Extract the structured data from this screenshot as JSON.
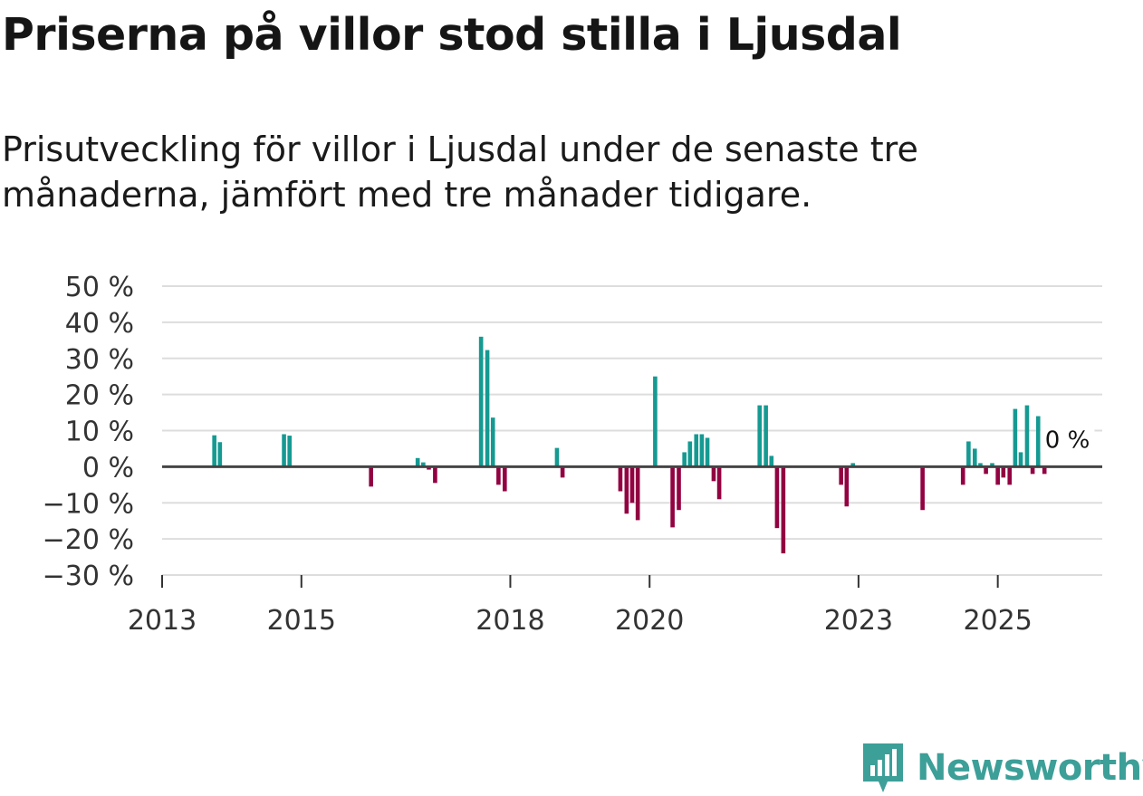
{
  "title": "Priserna på villor stod stilla i Ljusdal",
  "subtitle": "Prisutveckling för villor i Ljusdal under de senaste tre månaderna, jämfört med tre månader tidigare.",
  "brand": {
    "name": "Newsworthy",
    "color": "#3c9f98",
    "icon": "newsworthy-logo-icon"
  },
  "colors": {
    "positive": "#159a92",
    "negative": "#920241",
    "grid": "#dddddd",
    "zero_line": "#444444"
  },
  "chart_data": {
    "type": "bar",
    "title": "Priserna på villor stod stilla i Ljusdal",
    "xlabel": "",
    "ylabel": "",
    "ylim": [
      -30,
      50
    ],
    "xlim": [
      2013,
      2026.5
    ],
    "y_ticks": [
      50,
      40,
      30,
      20,
      10,
      0,
      -10,
      -20,
      -30
    ],
    "y_tick_labels": [
      "50 %",
      "40 %",
      "30 %",
      "20 %",
      "10 %",
      "0 %",
      "−10 %",
      "−20 %",
      "−30 %"
    ],
    "x_ticks": [
      2013,
      2015,
      2018,
      2020,
      2023,
      2025
    ],
    "x_tick_labels": [
      "2013",
      "2015",
      "2018",
      "2020",
      "2023",
      "2025"
    ],
    "annotation": {
      "text": "0 %",
      "x": 2026.0,
      "y": 0
    },
    "series": [
      {
        "name": "Prisutveckling",
        "points": [
          {
            "x": 2013.75,
            "y": 8.7
          },
          {
            "x": 2013.83,
            "y": 6.8
          },
          {
            "x": 2014.75,
            "y": 9.0
          },
          {
            "x": 2014.83,
            "y": 8.6
          },
          {
            "x": 2016.0,
            "y": -5.5
          },
          {
            "x": 2016.67,
            "y": 2.4
          },
          {
            "x": 2016.75,
            "y": 1.2
          },
          {
            "x": 2016.83,
            "y": -0.8
          },
          {
            "x": 2016.92,
            "y": -4.5
          },
          {
            "x": 2017.58,
            "y": 36.0
          },
          {
            "x": 2017.67,
            "y": 32.3
          },
          {
            "x": 2017.75,
            "y": 13.6
          },
          {
            "x": 2017.83,
            "y": -5.0
          },
          {
            "x": 2017.92,
            "y": -6.8
          },
          {
            "x": 2018.67,
            "y": 5.2
          },
          {
            "x": 2018.75,
            "y": -3.0
          },
          {
            "x": 2019.58,
            "y": -6.8
          },
          {
            "x": 2019.67,
            "y": -13.0
          },
          {
            "x": 2019.75,
            "y": -10.0
          },
          {
            "x": 2019.83,
            "y": -14.8
          },
          {
            "x": 2020.08,
            "y": 25.0
          },
          {
            "x": 2020.33,
            "y": -16.8
          },
          {
            "x": 2020.42,
            "y": -12.0
          },
          {
            "x": 2020.5,
            "y": 4.0
          },
          {
            "x": 2020.58,
            "y": 7.0
          },
          {
            "x": 2020.67,
            "y": 9.0
          },
          {
            "x": 2020.75,
            "y": 9.0
          },
          {
            "x": 2020.83,
            "y": 8.0
          },
          {
            "x": 2020.92,
            "y": -4.0
          },
          {
            "x": 2021.0,
            "y": -9.0
          },
          {
            "x": 2021.58,
            "y": 17.0
          },
          {
            "x": 2021.67,
            "y": 17.0
          },
          {
            "x": 2021.75,
            "y": 3.0
          },
          {
            "x": 2021.83,
            "y": -17.0
          },
          {
            "x": 2021.92,
            "y": -24.0
          },
          {
            "x": 2022.75,
            "y": -5.0
          },
          {
            "x": 2022.83,
            "y": -11.0
          },
          {
            "x": 2022.92,
            "y": 1.0
          },
          {
            "x": 2023.92,
            "y": -12.0
          },
          {
            "x": 2024.5,
            "y": -5.0
          },
          {
            "x": 2024.58,
            "y": 7.0
          },
          {
            "x": 2024.67,
            "y": 5.0
          },
          {
            "x": 2024.75,
            "y": 1.0
          },
          {
            "x": 2024.83,
            "y": -2.0
          },
          {
            "x": 2024.92,
            "y": 1.0
          },
          {
            "x": 2025.0,
            "y": -5.0
          },
          {
            "x": 2025.08,
            "y": -3.0
          },
          {
            "x": 2025.17,
            "y": -5.0
          },
          {
            "x": 2025.25,
            "y": 16.0
          },
          {
            "x": 2025.33,
            "y": 4.0
          },
          {
            "x": 2025.42,
            "y": 17.0
          },
          {
            "x": 2025.5,
            "y": -2.0
          },
          {
            "x": 2025.58,
            "y": 14.0
          },
          {
            "x": 2025.67,
            "y": -2.0
          }
        ]
      }
    ]
  }
}
